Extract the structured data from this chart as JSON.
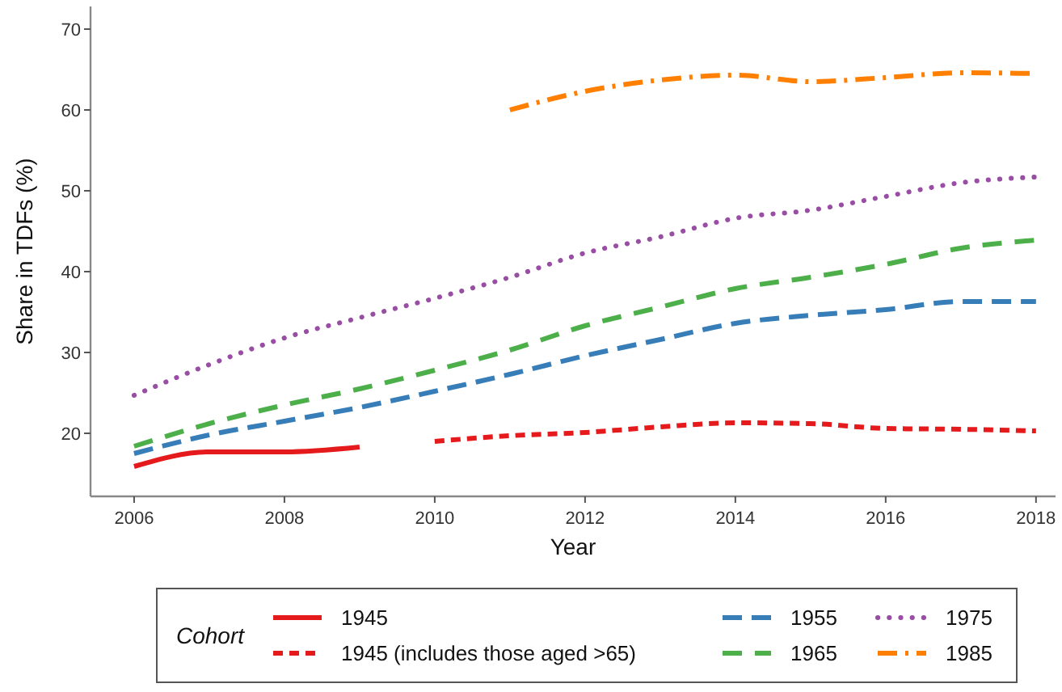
{
  "chart_data": {
    "type": "line",
    "xlabel": "Year",
    "ylabel": "Share in TDFs (%)",
    "legend_title": "Cohort",
    "legend": "bottom",
    "grid": false,
    "x": [
      2006,
      2007,
      2008,
      2009,
      2010,
      2011,
      2012,
      2013,
      2014,
      2015,
      2016,
      2017,
      2018
    ],
    "xlim": [
      2005.42,
      2018.26
    ],
    "xticks": [
      2006,
      2008,
      2010,
      2012,
      2014,
      2016,
      2018
    ],
    "ylim": [
      12.2,
      72.8
    ],
    "yticks": [
      20,
      30,
      40,
      50,
      60,
      70
    ],
    "series": [
      {
        "name": "1945",
        "color": "#e41a1c",
        "line_style": "solid",
        "values": [
          15.9,
          17.7,
          17.7,
          18.3,
          null,
          null,
          null,
          null,
          null,
          null,
          null,
          null,
          null
        ]
      },
      {
        "name": "1945 (includes those aged >65)",
        "color": "#e41a1c",
        "line_style": "dashed",
        "values": [
          null,
          null,
          null,
          null,
          19.0,
          19.7,
          20.1,
          20.8,
          21.3,
          21.2,
          20.6,
          20.5,
          20.3
        ]
      },
      {
        "name": "1955",
        "color": "#377eb8",
        "line_style": "dashed",
        "values": [
          17.5,
          19.8,
          21.5,
          23.2,
          25.2,
          27.3,
          29.6,
          31.6,
          33.6,
          34.6,
          35.3,
          36.3,
          36.3
        ]
      },
      {
        "name": "1965",
        "color": "#4daf4a",
        "line_style": "dashed",
        "values": [
          18.4,
          21.2,
          23.5,
          25.5,
          27.8,
          30.3,
          33.3,
          35.6,
          37.9,
          39.3,
          40.9,
          42.9,
          43.9
        ]
      },
      {
        "name": "1975",
        "color": "#984ea3",
        "line_style": "dotted",
        "values": [
          24.7,
          28.5,
          31.8,
          34.3,
          36.7,
          39.3,
          42.3,
          44.3,
          46.6,
          47.6,
          49.3,
          51.0,
          51.7
        ]
      },
      {
        "name": "1985",
        "color": "#ff7f00",
        "line_style": "dashed",
        "values": [
          null,
          null,
          null,
          null,
          null,
          60.0,
          62.3,
          63.7,
          64.3,
          63.5,
          64.0,
          64.6,
          64.5
        ]
      }
    ]
  }
}
